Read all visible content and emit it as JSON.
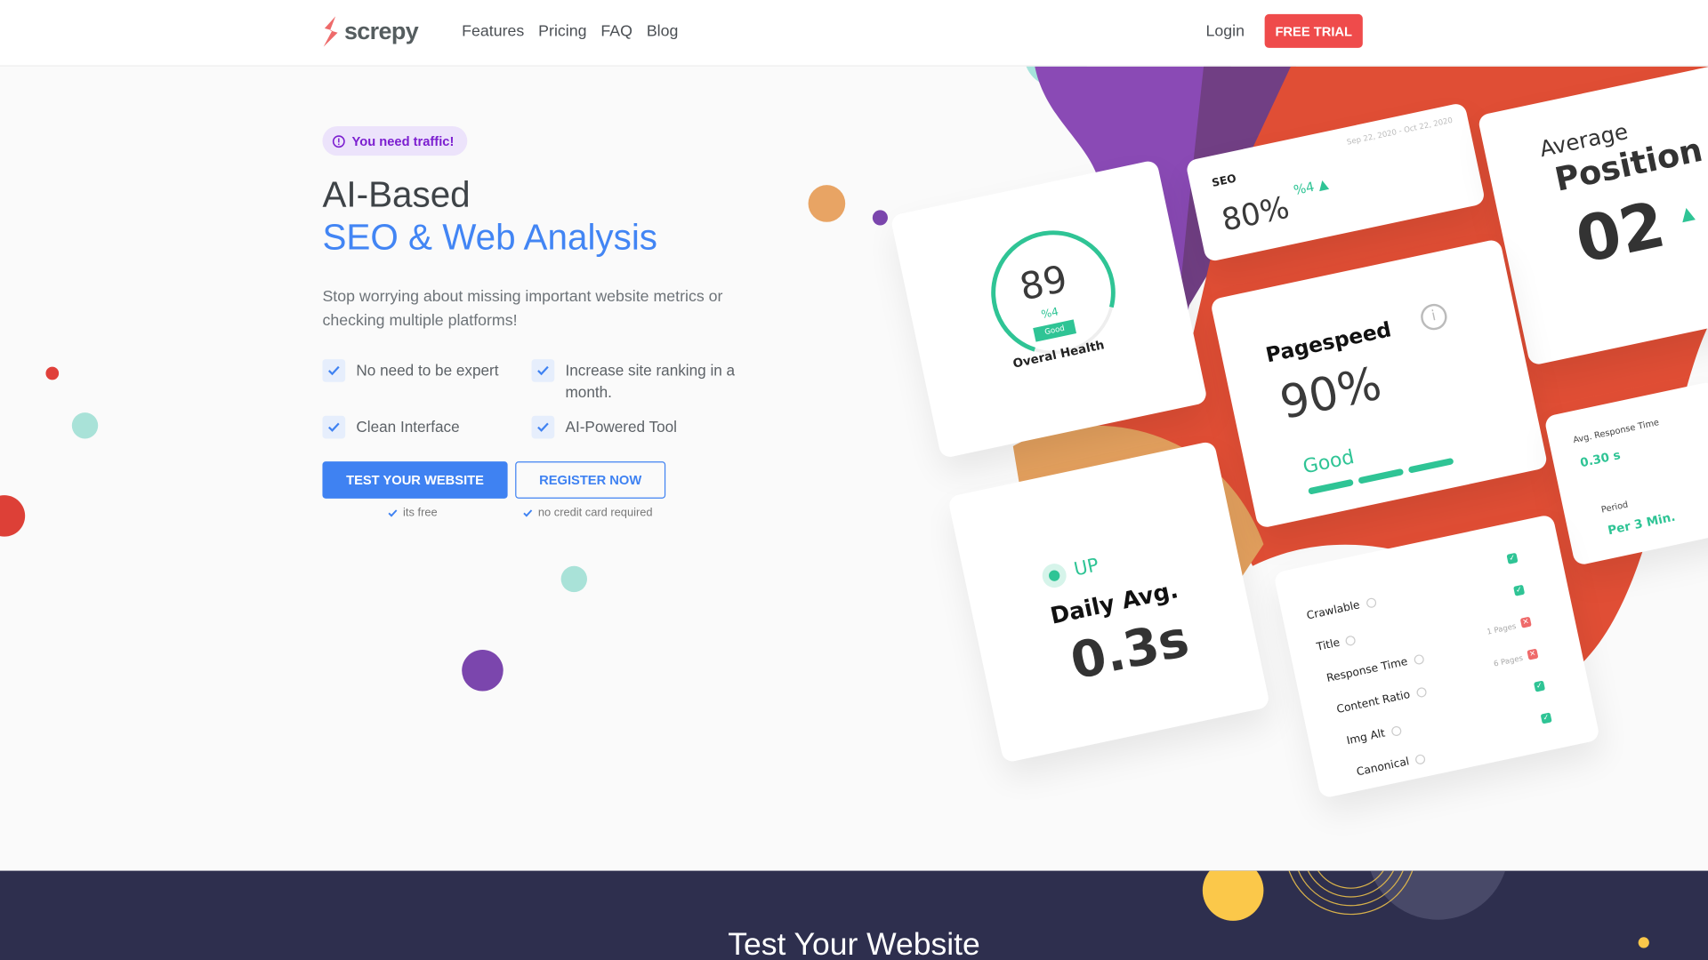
{
  "nav": {
    "brand": "screpy",
    "links": [
      "Features",
      "Pricing",
      "FAQ",
      "Blog"
    ],
    "login": "Login",
    "free_trial": "FREE TRIAL"
  },
  "hero": {
    "badge": "You need traffic!",
    "title_line1": "AI-Based",
    "title_line2": "SEO & Web Analysis",
    "lead": "Stop worrying about missing important website metrics or checking multiple platforms!",
    "features": [
      "No need to be expert",
      "Increase site ranking in a month.",
      "Clean Interface",
      "AI-Powered Tool"
    ],
    "primary_button": "TEST YOUR WEBSITE",
    "secondary_button": "REGISTER NOW",
    "primary_note": "its free",
    "secondary_note": "no credit card required"
  },
  "illustration": {
    "health": {
      "score": "89",
      "change": "%4",
      "status": "Good",
      "label": "Overal Health",
      "gauge_percent": 89
    },
    "seo": {
      "label": "SEO",
      "value": "80%",
      "change": "%4",
      "date_range": "Sep 22, 2020 - Oct 22, 2020"
    },
    "position": {
      "line1": "Average",
      "line2": "Position",
      "value": "02"
    },
    "pagespeed": {
      "label": "Pagespeed",
      "value": "90%",
      "status": "Good"
    },
    "response": {
      "label": "Avg. Response Time",
      "value": "0.30 s",
      "period_label": "Period",
      "period": "Per 3 Min."
    },
    "uptime": {
      "status": "UP",
      "label": "Daily Avg.",
      "value": "0.3s"
    },
    "checklist": [
      {
        "label": "Crawlable",
        "note": "",
        "pass": true
      },
      {
        "label": "Title",
        "note": "",
        "pass": true
      },
      {
        "label": "Response Time",
        "note": "1 Pages",
        "pass": false
      },
      {
        "label": "Content Ratio",
        "note": "6 Pages",
        "pass": false
      },
      {
        "label": "Img Alt",
        "note": "",
        "pass": true
      },
      {
        "label": "Canonical",
        "note": "",
        "pass": true
      }
    ]
  },
  "section2": {
    "title": "Test Your Website"
  },
  "colors": {
    "primary": "#3f82f2",
    "accent": "#ef4b4b",
    "success": "#2fc495",
    "purple": "#8a4ab5",
    "dark": "#2e2f4e"
  }
}
